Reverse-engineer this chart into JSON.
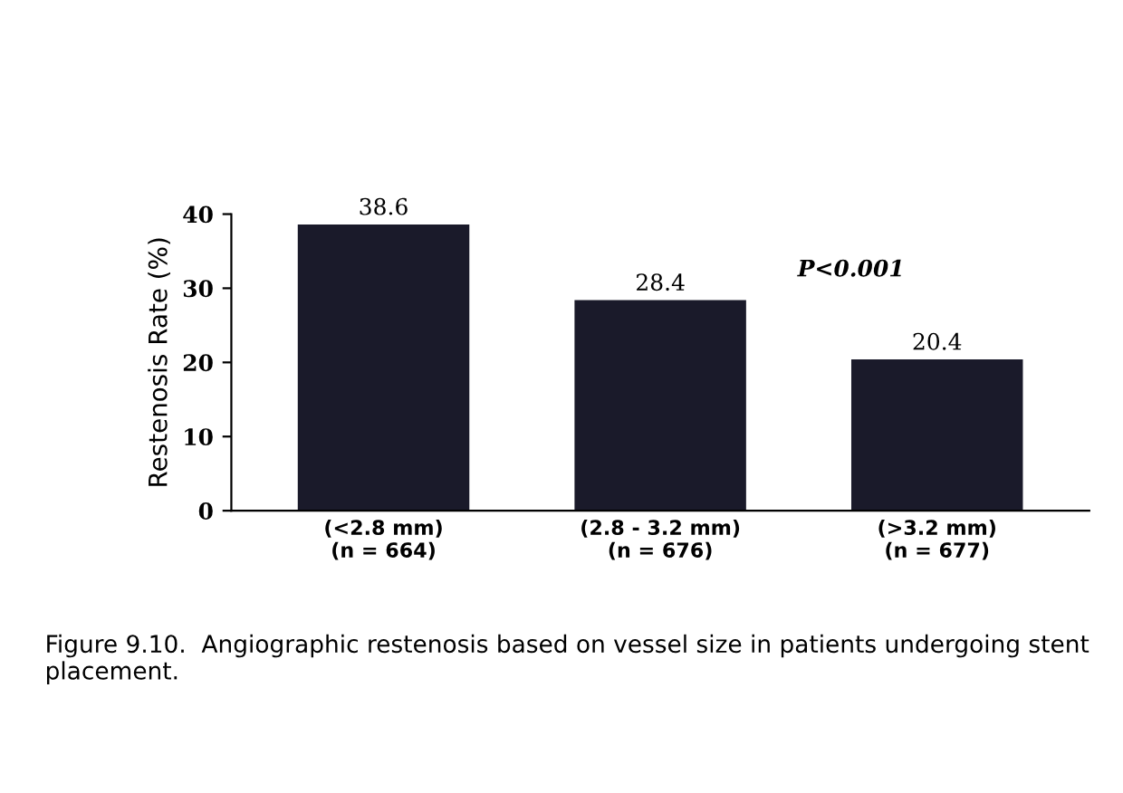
{
  "chart_data": {
    "type": "bar",
    "ylabel": "Restenosis Rate (%)",
    "categories": [
      "(<2.8 mm)\n(n = 664)",
      "(2.8 - 3.2 mm)\n(n = 676)",
      "(>3.2 mm)\n(n = 677)"
    ],
    "values": [
      38.6,
      28.4,
      20.4
    ],
    "color": "#1a1a2a",
    "ylim": [
      0,
      40
    ],
    "yticks": [
      0,
      10,
      20,
      30,
      40
    ],
    "data_labels": true,
    "grid": false,
    "annotations": [
      "P<0.001",
      "Figure 9.10.  Angiographic restenosis based on vessel size in patients undergoing stent placement."
    ]
  }
}
